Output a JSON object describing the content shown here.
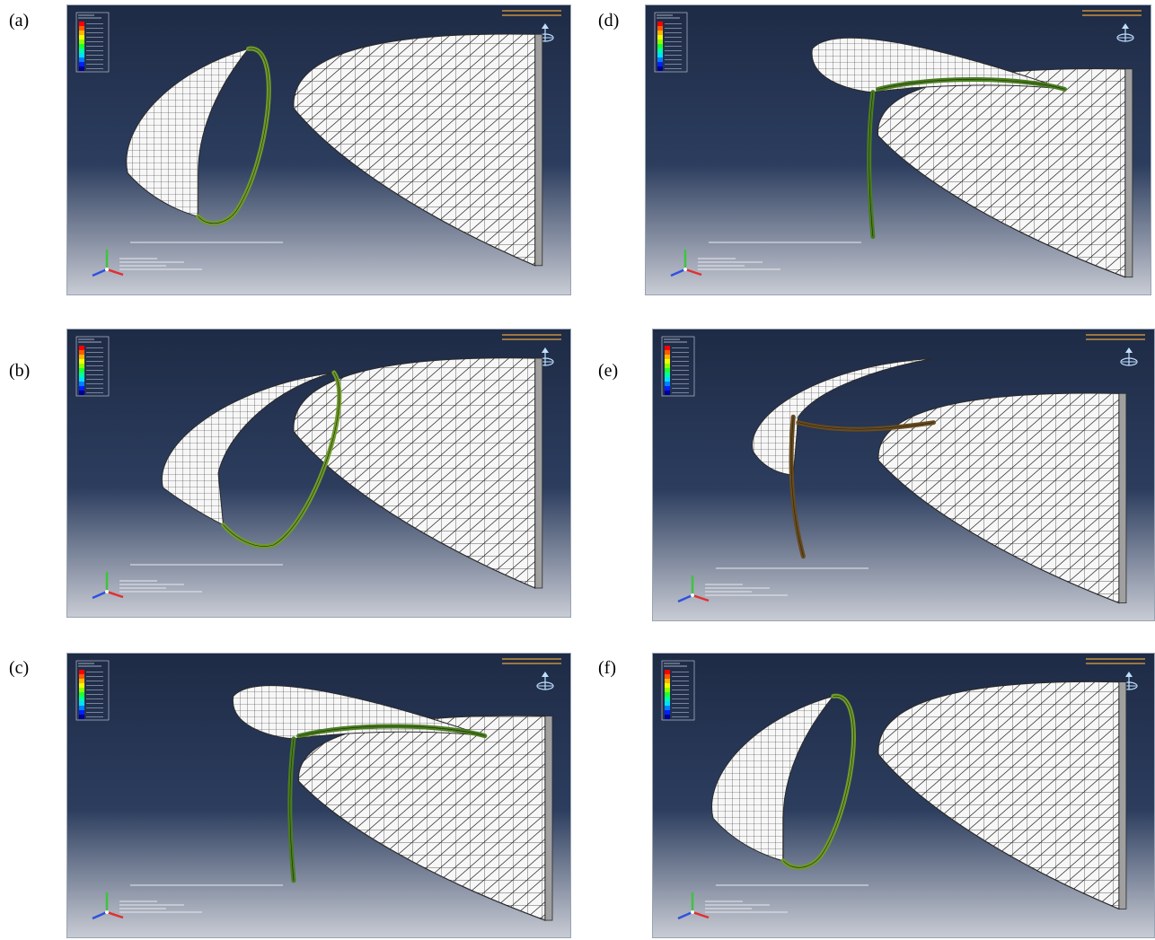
{
  "panels": [
    {
      "label": "(a)",
      "variant": "open-left",
      "bandColor": "#6f9a2a"
    },
    {
      "label": "(b)",
      "variant": "touch",
      "bandColor": "#6f9a2a"
    },
    {
      "label": "(c)",
      "variant": "over-top",
      "bandColor": "#4a7d1f"
    },
    {
      "label": "(d)",
      "variant": "over-top",
      "bandColor": "#4a7d1f"
    },
    {
      "label": "(e)",
      "variant": "inner-slide",
      "bandColor": "#6a4a1f"
    },
    {
      "label": "(f)",
      "variant": "open-left",
      "bandColor": "#6f9a2a"
    }
  ],
  "colors": {
    "bgTop": "#1e2b46",
    "bgBottom": "#c8cbd4",
    "mesh": "#2a2a2a",
    "shell": "#f7f7f7",
    "accent": "#e8a33a"
  },
  "legend_colors": [
    "#ff0000",
    "#ff5a00",
    "#ffb400",
    "#f0ff00",
    "#90ff00",
    "#20ff30",
    "#00ffa0",
    "#00e0ff",
    "#0080ff",
    "#0020ff",
    "#000090"
  ]
}
